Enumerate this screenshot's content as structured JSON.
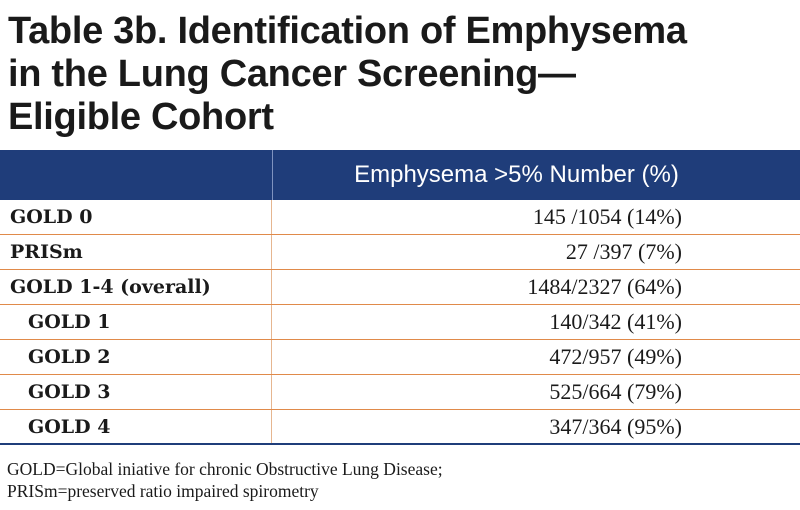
{
  "title": {
    "line1": "Table 3b. Identification of Emphysema",
    "line2": "in the Lung Cancer Screening—",
    "line3": "Eligible Cohort"
  },
  "table": {
    "header": {
      "left": "",
      "right": "Emphysema >5% Number (%)"
    },
    "rows": [
      {
        "label": "GOLD 0",
        "value": "145 /1054 (14%)"
      },
      {
        "label": "PRISm",
        "value": "27 /397 (7%)"
      },
      {
        "label": "GOLD 1-4 (overall)",
        "value": "1484/2327 (64%)"
      },
      {
        "label": "GOLD 1",
        "value": "140/342 (41%)"
      },
      {
        "label": "GOLD 2",
        "value": "472/957 (49%)"
      },
      {
        "label": "GOLD 3",
        "value": "525/664 (79%)"
      },
      {
        "label": "GOLD 4",
        "value": "347/364 (95%)"
      }
    ]
  },
  "footnote": {
    "line1": "GOLD=Global iniative for chronic Obstructive Lung Disease;",
    "line2": "PRISm=preserved ratio impaired spirometry"
  },
  "colors": {
    "header_bg": "#1f3d7a",
    "row_divider": "#e08a4a"
  }
}
